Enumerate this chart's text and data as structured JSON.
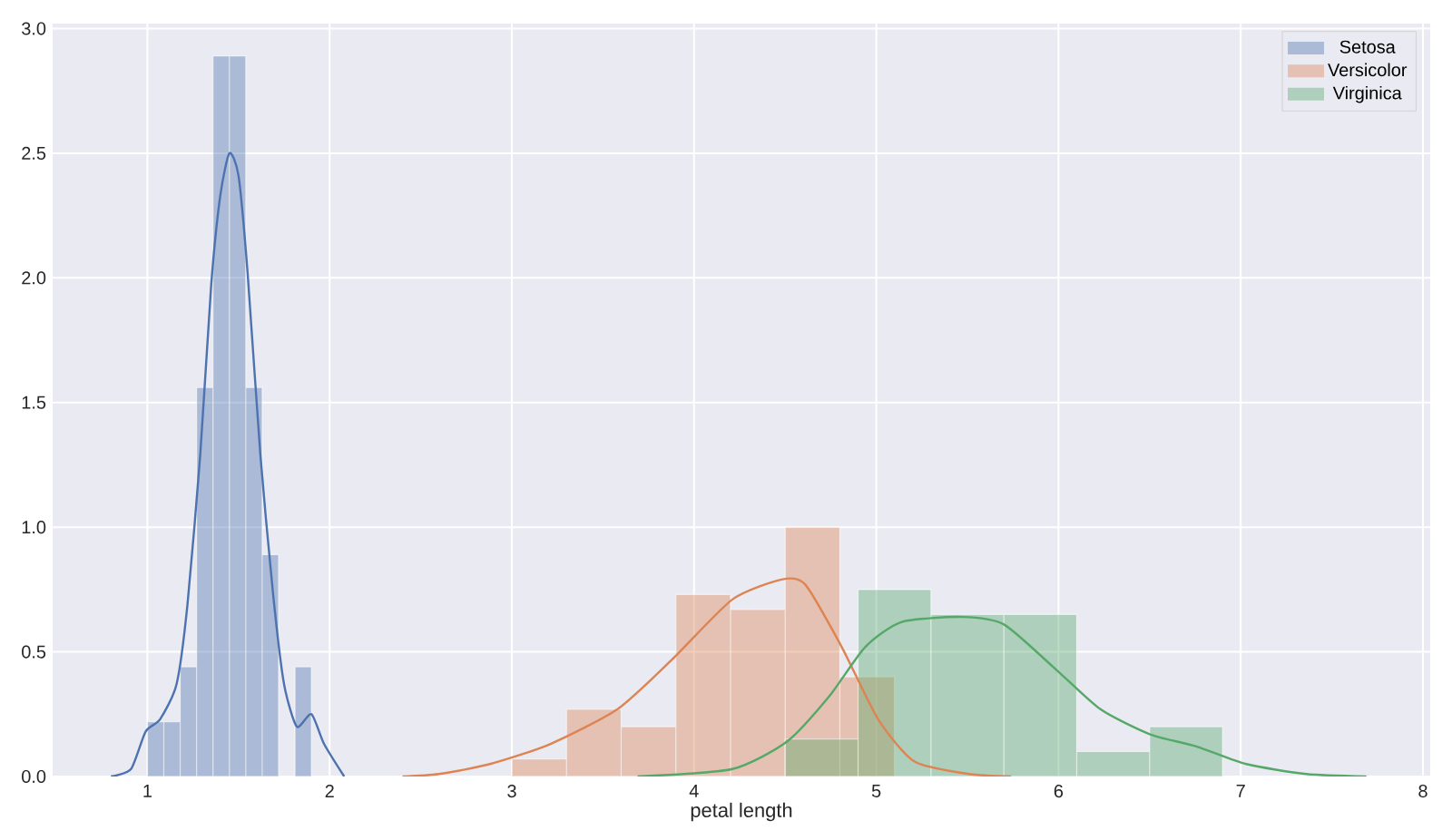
{
  "chart_data": {
    "type": "histogram",
    "xlabel": "petal length",
    "xlim": [
      0.48,
      8.04
    ],
    "ylim": [
      0,
      3.02
    ],
    "xticks": [
      1,
      2,
      3,
      4,
      5,
      6,
      7,
      8
    ],
    "yticks": [
      {
        "value": 0,
        "label": "0.0"
      },
      {
        "value": 0.5,
        "label": "0.5"
      },
      {
        "value": 1,
        "label": "1.0"
      },
      {
        "value": 1.5,
        "label": "1.5"
      },
      {
        "value": 2,
        "label": "2.0"
      },
      {
        "value": 2.5,
        "label": "2.5"
      },
      {
        "value": 3,
        "label": "3.0"
      }
    ],
    "grid": true,
    "legend": "top right",
    "series": [
      {
        "name": "Setosa",
        "color": "#4c72b0",
        "bins": [
          1.0,
          1.09,
          1.18,
          1.27,
          1.36,
          1.45,
          1.54,
          1.63,
          1.72,
          1.81,
          1.9
        ],
        "values": [
          0.22,
          0.22,
          0.44,
          1.56,
          2.89,
          2.89,
          1.56,
          0.89,
          0,
          0.44
        ]
      },
      {
        "name": "Versicolor",
        "color": "#dd8452",
        "bins": [
          3.0,
          3.3,
          3.6,
          3.9,
          4.2,
          4.5,
          4.8,
          5.1
        ],
        "values": [
          0.07,
          0.27,
          0.2,
          0.73,
          0.67,
          1.0,
          0.4
        ]
      },
      {
        "name": "Virginica",
        "color": "#55a868",
        "bins": [
          4.5,
          4.9,
          5.3,
          5.7,
          6.1,
          6.5,
          6.9
        ],
        "values": [
          0.15,
          0.75,
          0.65,
          0.65,
          0.1,
          0.2
        ]
      },
      {
        "type": "line",
        "color": "#4c72b0",
        "x": [
          0.8,
          0.91,
          0.99,
          1.07,
          1.16,
          1.22,
          1.29,
          1.35,
          1.4,
          1.45,
          1.5,
          1.55,
          1.62,
          1.69,
          1.75,
          1.82,
          1.9,
          1.97,
          2.08
        ],
        "values": [
          0,
          0.03,
          0.18,
          0.23,
          0.37,
          0.69,
          1.29,
          1.97,
          2.33,
          2.5,
          2.41,
          2.02,
          1.29,
          0.73,
          0.37,
          0.2,
          0.25,
          0.13,
          0
        ]
      },
      {
        "type": "line",
        "color": "#dd8452",
        "x": [
          2.4,
          2.6,
          2.88,
          3.21,
          3.58,
          3.88,
          4.21,
          4.48,
          4.61,
          4.81,
          5.01,
          5.21,
          5.51,
          5.74
        ],
        "values": [
          0,
          0.01,
          0.05,
          0.13,
          0.27,
          0.47,
          0.71,
          0.79,
          0.77,
          0.52,
          0.23,
          0.06,
          0.01,
          0
        ]
      },
      {
        "type": "line",
        "color": "#55a868",
        "x": [
          3.69,
          4.21,
          4.51,
          4.74,
          4.94,
          5.14,
          5.47,
          5.7,
          5.97,
          6.23,
          6.5,
          6.76,
          7.03,
          7.36,
          7.69
        ],
        "values": [
          0,
          0.03,
          0.14,
          0.32,
          0.52,
          0.62,
          0.64,
          0.61,
          0.44,
          0.27,
          0.17,
          0.12,
          0.05,
          0.01,
          0
        ]
      }
    ]
  }
}
